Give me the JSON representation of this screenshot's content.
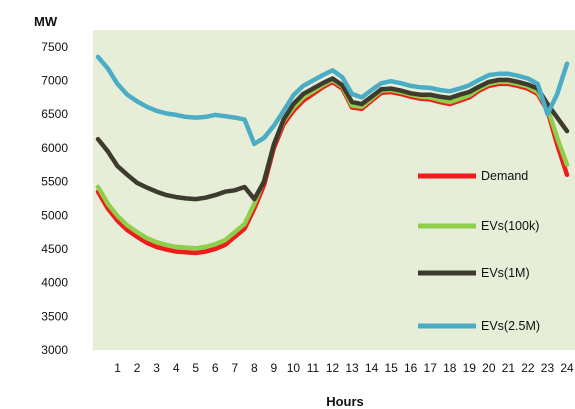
{
  "chart_data": {
    "type": "line",
    "ylabel": "MW",
    "xlabel": "Hours",
    "ylim": [
      3000,
      7750
    ],
    "yticks": [
      3000,
      3500,
      4000,
      4500,
      5000,
      5500,
      6000,
      6500,
      7000,
      7500
    ],
    "xlim": [
      0,
      24
    ],
    "xticks": [
      1,
      2,
      3,
      4,
      5,
      6,
      7,
      8,
      9,
      10,
      11,
      12,
      13,
      14,
      15,
      16,
      17,
      18,
      19,
      20,
      21,
      22,
      23,
      24
    ],
    "grid": false,
    "legend_position": "right",
    "background": "#e6eed8",
    "x": [
      0,
      0.5,
      1,
      1.5,
      2,
      2.5,
      3,
      3.5,
      4,
      4.5,
      5,
      5.5,
      6,
      6.5,
      7,
      7.5,
      8,
      8.5,
      9,
      9.5,
      10,
      10.5,
      11,
      11.5,
      12,
      12.5,
      13,
      13.5,
      14,
      14.5,
      15,
      15.5,
      16,
      16.5,
      17,
      17.5,
      18,
      18.5,
      19,
      19.5,
      20,
      20.5,
      21,
      21.5,
      22,
      22.5,
      23,
      23.5,
      24
    ],
    "series": [
      {
        "name": "Demand",
        "color": "#ee1c1c",
        "values": [
          5350,
          5100,
          4920,
          4780,
          4680,
          4590,
          4530,
          4490,
          4460,
          4450,
          4440,
          4460,
          4500,
          4560,
          4680,
          4800,
          5100,
          5450,
          6000,
          6350,
          6550,
          6700,
          6800,
          6900,
          6980,
          6880,
          6600,
          6580,
          6700,
          6820,
          6830,
          6800,
          6760,
          6730,
          6720,
          6680,
          6650,
          6700,
          6750,
          6850,
          6920,
          6950,
          6950,
          6920,
          6880,
          6800,
          6550,
          6050,
          5600
        ]
      },
      {
        "name": "EVs(100k)",
        "color": "#8fce4a",
        "values": [
          5420,
          5170,
          4990,
          4850,
          4750,
          4660,
          4600,
          4560,
          4530,
          4520,
          4510,
          4530,
          4570,
          4630,
          4750,
          4870,
          5170,
          5520,
          6060,
          6400,
          6600,
          6750,
          6840,
          6930,
          7010,
          6910,
          6630,
          6610,
          6730,
          6850,
          6860,
          6830,
          6790,
          6760,
          6750,
          6710,
          6680,
          6730,
          6780,
          6880,
          6950,
          6980,
          6980,
          6950,
          6910,
          6830,
          6590,
          6150,
          5750
        ]
      },
      {
        "name": "EVs(1M)",
        "color": "#3d3a2e",
        "values": [
          6130,
          5950,
          5730,
          5600,
          5480,
          5410,
          5350,
          5300,
          5270,
          5250,
          5240,
          5260,
          5300,
          5350,
          5370,
          5420,
          5240,
          5500,
          6050,
          6420,
          6650,
          6800,
          6880,
          6960,
          7030,
          6930,
          6680,
          6650,
          6760,
          6870,
          6880,
          6850,
          6810,
          6790,
          6790,
          6760,
          6740,
          6790,
          6830,
          6910,
          6980,
          7010,
          7010,
          6980,
          6940,
          6880,
          6650,
          6450,
          6250
        ]
      },
      {
        "name": "EVs(2.5M)",
        "color": "#4bacc6",
        "values": [
          7350,
          7180,
          6950,
          6790,
          6690,
          6610,
          6550,
          6510,
          6490,
          6460,
          6450,
          6460,
          6490,
          6470,
          6450,
          6420,
          6060,
          6150,
          6330,
          6550,
          6780,
          6920,
          7000,
          7080,
          7150,
          7050,
          6800,
          6750,
          6860,
          6960,
          6990,
          6960,
          6920,
          6900,
          6890,
          6860,
          6840,
          6880,
          6930,
          7010,
          7080,
          7100,
          7100,
          7070,
          7030,
          6950,
          6500,
          6800,
          7250
        ]
      }
    ]
  }
}
